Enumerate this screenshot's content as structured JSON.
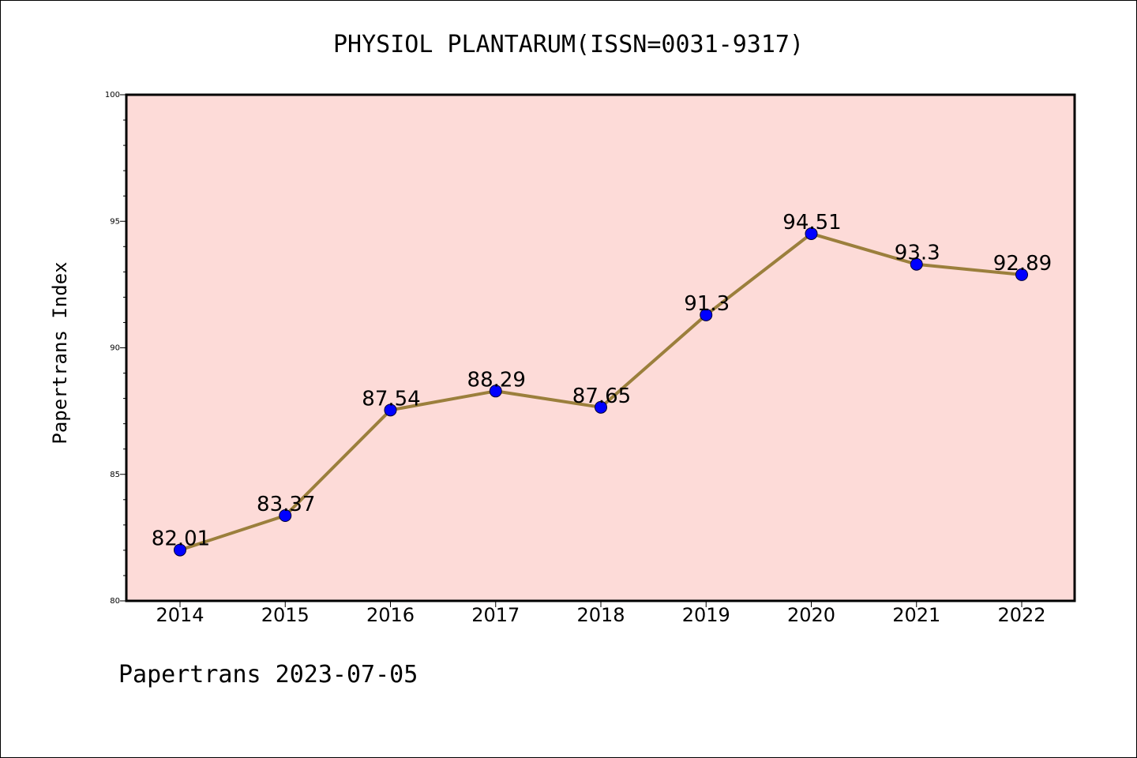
{
  "chart_data": {
    "type": "line",
    "title": "PHYSIOL PLANTARUM(ISSN=0031-9317)",
    "xlabel": "",
    "ylabel": "Papertrans Index",
    "categories": [
      "2014",
      "2015",
      "2016",
      "2017",
      "2018",
      "2019",
      "2020",
      "2021",
      "2022"
    ],
    "values": [
      82.01,
      83.37,
      87.54,
      88.29,
      87.65,
      91.3,
      94.51,
      93.3,
      92.89
    ],
    "data_labels": [
      "82.01",
      "83.37",
      "87.54",
      "88.29",
      "87.65",
      "91.3",
      "94.51",
      "93.3",
      "92.89"
    ],
    "ylim": [
      80,
      100
    ],
    "yticks": [
      80,
      85,
      90,
      95,
      100
    ],
    "ytick_labels": [
      "80",
      "85",
      "90",
      "95",
      "100"
    ],
    "grid": false,
    "colors": {
      "plot_background": "#fddbd8",
      "line": "#9b7f3c",
      "marker": "#0000ff"
    },
    "footer": "Papertrans 2023-07-05"
  }
}
